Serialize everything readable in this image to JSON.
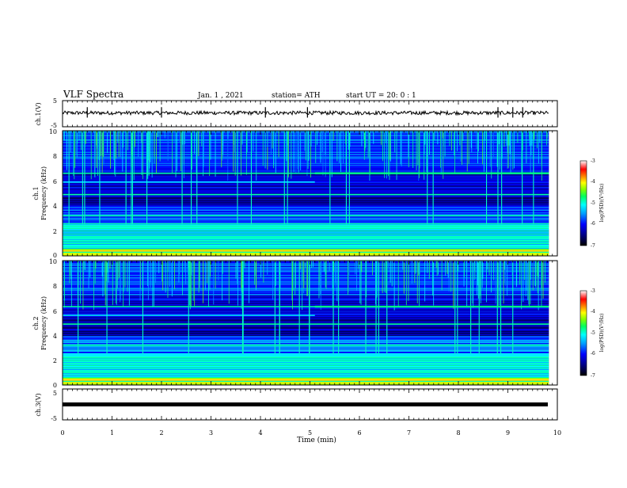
{
  "header": {
    "title": "VLF Spectra",
    "date": "Jan.  1  , 2021",
    "station": "station= ATH",
    "start_ut": "start  UT  =   20: 0  : 1"
  },
  "chart_data": [
    {
      "id": "ch1-voltage",
      "type": "line",
      "ylabel": "ch.1(V)",
      "ylim": [
        -5,
        5
      ],
      "y_ticks": [
        5,
        -5
      ],
      "xlim": [
        0,
        10
      ],
      "note_series": "noisy trace around about +0.3 V with small spikes"
    },
    {
      "id": "ch1-spectrogram",
      "type": "heatmap",
      "ylabel_line1": "ch.1",
      "ylabel_line2": "Frequency  (kHz)",
      "ylim": [
        0,
        10
      ],
      "y_ticks": [
        "0",
        "2",
        "4",
        "6",
        "8",
        "10"
      ],
      "xlim": [
        0,
        10
      ],
      "data_end_min": 9.83,
      "colorbar": {
        "label": "log(PSD)(V²/Hz)",
        "range": [
          -7,
          -3
        ],
        "ticks": [
          "-3",
          "-4",
          "-5",
          "-6",
          "-7"
        ]
      },
      "persistent_lines_khz": [
        0.3,
        1.0,
        1.5,
        2.2,
        3.2,
        4.9,
        6.6
      ],
      "line_shift_minute": 5.1,
      "line_after_shift_khz": 6.6,
      "line_before_shift_khz": 5.9
    },
    {
      "id": "ch2-spectrogram",
      "type": "heatmap",
      "ylabel_line1": "ch.2",
      "ylabel_line2": "Frequency  (kHz)",
      "ylim": [
        0,
        10
      ],
      "y_ticks": [
        "0",
        "2",
        "4",
        "6",
        "8",
        "10"
      ],
      "xlim": [
        0,
        10
      ],
      "data_end_min": 9.83,
      "colorbar": {
        "label": "log(PSD)(V²/Hz)",
        "range": [
          -7,
          -3
        ],
        "ticks": [
          "-3",
          "-4",
          "-5",
          "-6",
          "-7"
        ]
      },
      "persistent_lines_khz": [
        0.3,
        1.0,
        2.2,
        3.2,
        4.9,
        6.3
      ],
      "line_shift_minute": 5.1,
      "line_after_shift_khz": 6.3,
      "line_before_shift_khz": 5.6
    },
    {
      "id": "ch3-voltage",
      "type": "line",
      "ylabel": "ch.3(V)",
      "ylim": [
        -5,
        5
      ],
      "y_ticks": [
        5,
        -5
      ],
      "xlim": [
        0,
        10
      ],
      "constant_value": 0
    }
  ],
  "x_axis": {
    "label": "Time  (min)",
    "ticks": [
      "0",
      "1",
      "2",
      "3",
      "4",
      "5",
      "6",
      "7",
      "8",
      "9",
      "10"
    ]
  },
  "colors": {
    "cmap": [
      "#000000",
      "#000080",
      "#0000ff",
      "#00a0ff",
      "#00ffff",
      "#00ff80",
      "#80ff00",
      "#ffff00",
      "#ff8000",
      "#ff0000",
      "#ffffff"
    ]
  }
}
